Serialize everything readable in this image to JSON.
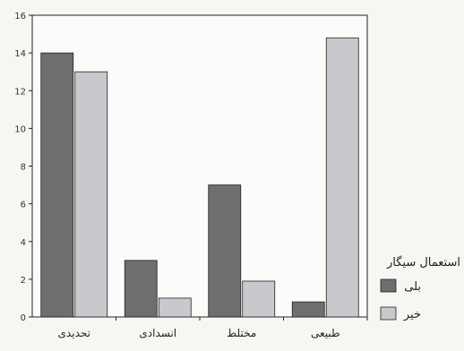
{
  "chart_data": {
    "type": "bar",
    "categories": [
      "تحدیدی",
      "انسدادی",
      "مختلط",
      "طبیعی"
    ],
    "series": [
      {
        "name": "بلی",
        "values": [
          14,
          3,
          7,
          0.8
        ],
        "color": "#6e6d6f"
      },
      {
        "name": "خیر",
        "values": [
          13,
          1,
          1.9,
          14.8
        ],
        "color": "#c9c8cc"
      }
    ],
    "yticks": [
      0,
      2,
      4,
      6,
      8,
      10,
      12,
      14,
      16
    ],
    "ylim": [
      0,
      16
    ],
    "grid": false,
    "legend": {
      "title": "استعمال سیگار",
      "placement": "right"
    }
  }
}
